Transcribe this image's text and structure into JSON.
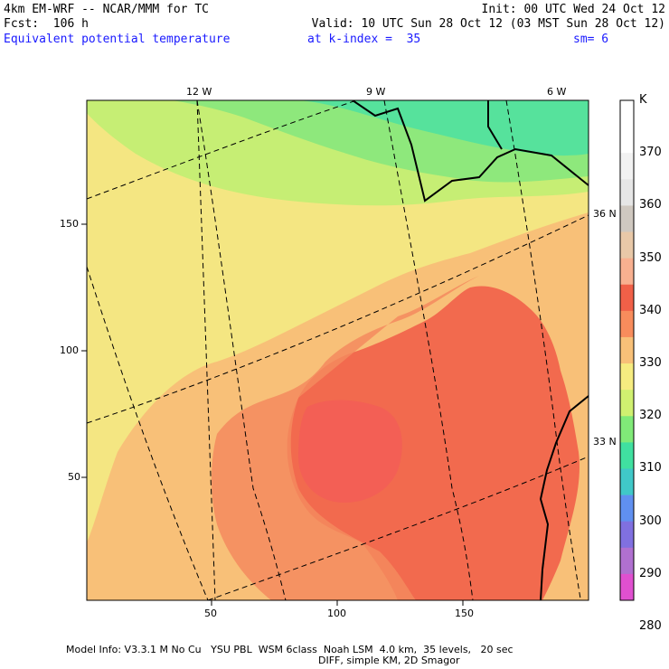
{
  "header": {
    "model": "4km EM-WRF -- NCAR/MMM for TC",
    "fcst": "Fcst:  106 h",
    "init": "Init: 00 UTC Wed 24 Oct 12",
    "valid": "Valid: 10 UTC Sun 28 Oct 12 (03 MST Sun 28 Oct 12)",
    "field": "Equivalent potential temperature",
    "kindex": "at k-index =  35",
    "sm": "sm= 6"
  },
  "map": {
    "lon_labels": [
      "12 W",
      "9 W",
      "6 W"
    ],
    "lat_labels": [
      "36 N",
      "33 N"
    ],
    "x_ticks": [
      "50",
      "100",
      "150"
    ],
    "y_ticks": [
      "150",
      "100",
      "50"
    ]
  },
  "colorbar": {
    "unit": "K",
    "labels": [
      "370",
      "360",
      "350",
      "340",
      "330",
      "320",
      "310",
      "300",
      "290",
      "280"
    ],
    "colors": [
      "#ffffff",
      "#ffffff",
      "#f2f2f2",
      "#e6e6e6",
      "#cfc8c0",
      "#e8c8a8",
      "#f8b090",
      "#f06048",
      "#f88c5c",
      "#f8c078",
      "#f6ec80",
      "#d0f070",
      "#80ea78",
      "#40e0a0",
      "#40c8c8",
      "#6090f0",
      "#8070e0",
      "#b070d0",
      "#e050d0"
    ]
  },
  "footer": {
    "line1": "Model Info: V3.3.1 M No Cu   YSU PBL  WSM 6class  Noah LSM  4.0 km,  35 levels,   20 sec",
    "line2": "DIFF, simple KM, 2D Smagor"
  }
}
